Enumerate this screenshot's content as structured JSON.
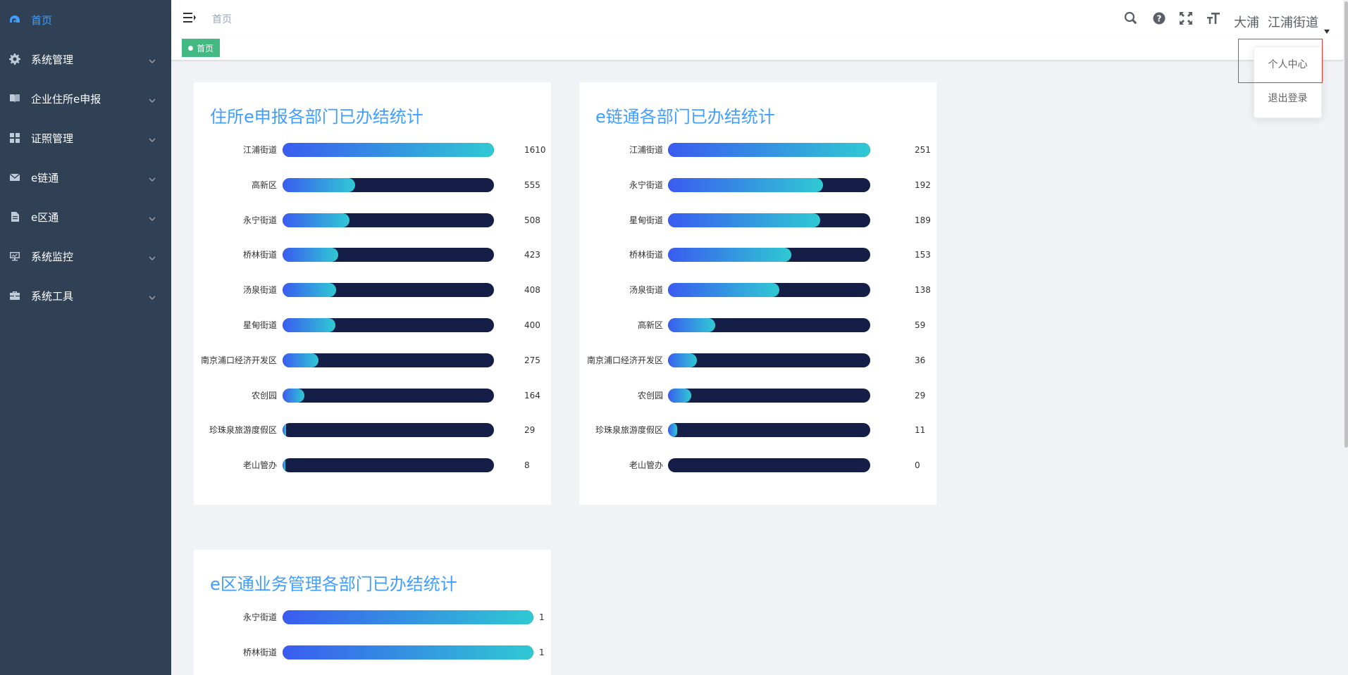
{
  "sidebar": {
    "items": [
      {
        "label": "首页",
        "icon": "dashboard-icon",
        "active": true,
        "has_caret": false
      },
      {
        "label": "系统管理",
        "icon": "gear-icon",
        "active": false,
        "has_caret": true
      },
      {
        "label": "企业住所e申报",
        "icon": "book-icon",
        "active": false,
        "has_caret": true
      },
      {
        "label": "证照管理",
        "icon": "grid-icon",
        "active": false,
        "has_caret": true
      },
      {
        "label": "e链通",
        "icon": "mail-icon",
        "active": false,
        "has_caret": true
      },
      {
        "label": "e区通",
        "icon": "document-icon",
        "active": false,
        "has_caret": true
      },
      {
        "label": "系统监控",
        "icon": "monitor-icon",
        "active": false,
        "has_caret": true
      },
      {
        "label": "系统工具",
        "icon": "toolbox-icon",
        "active": false,
        "has_caret": true
      }
    ]
  },
  "navbar": {
    "breadcrumb": "首页",
    "user_name_1": "大浦",
    "user_name_2": "江浦街道",
    "icons": [
      "search-icon",
      "question-icon",
      "fullscreen-icon",
      "font-size-icon"
    ]
  },
  "tags": {
    "active_tag": "首页"
  },
  "dropdown": {
    "items": [
      "个人中心",
      "退出登录"
    ]
  },
  "colors": {
    "sidebar_bg": "#304156",
    "accent": "#409eff",
    "tag_green": "#42b983",
    "bar_track": "#141e46",
    "bar_gradient_start": "#3a5cf0",
    "bar_gradient_end": "#2fc9d3"
  },
  "chart_data": [
    {
      "type": "bar",
      "orientation": "horizontal",
      "title": "住所e申报各部门已办结统计",
      "categories": [
        "江浦街道",
        "高新区",
        "永宁街道",
        "桥林街道",
        "汤泉街道",
        "星甸街道",
        "南京浦口经济开发区",
        "农创园",
        "珍珠泉旅游度假区",
        "老山管办"
      ],
      "values": [
        1610,
        555,
        508,
        423,
        408,
        400,
        275,
        164,
        29,
        8
      ],
      "xlim": [
        0,
        1610
      ]
    },
    {
      "type": "bar",
      "orientation": "horizontal",
      "title": "e链通各部门已办结统计",
      "categories": [
        "江浦街道",
        "永宁街道",
        "星甸街道",
        "桥林街道",
        "汤泉街道",
        "高新区",
        "南京浦口经济开发区",
        "农创园",
        "珍珠泉旅游度假区",
        "老山管办"
      ],
      "values": [
        251,
        192,
        189,
        153,
        138,
        59,
        36,
        29,
        11,
        0
      ],
      "xlim": [
        0,
        251
      ]
    },
    {
      "type": "bar",
      "orientation": "horizontal",
      "title": "e区通业务管理各部门已办结统计",
      "categories": [
        "永宁街道",
        "桥林街道"
      ],
      "values": [
        1,
        1
      ],
      "xlim": [
        0,
        1
      ]
    }
  ]
}
